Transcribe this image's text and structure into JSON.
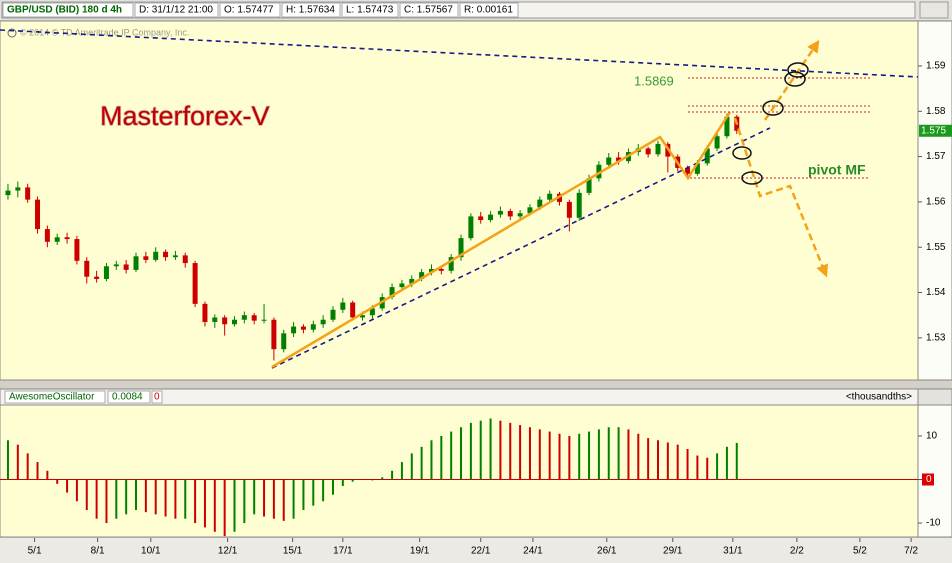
{
  "header": {
    "symbol": "GBP/USD (BID) 180 d 4h",
    "date": "D: 31/1/12 21:00",
    "open": "O: 1.57477",
    "high": "H: 1.57634",
    "low": "L: 1.57473",
    "close": "C: 1.57567",
    "range": "R: 0.00161"
  },
  "chart_data": [
    {
      "type": "candlestick",
      "watermark": "© 2014 © TD Ameritrade IP Company, Inc.",
      "annotations": [
        "Masterforex-V",
        "1.5869",
        "pivot MF"
      ],
      "price_marker": "1.575",
      "colors": {
        "up": "#008000",
        "down": "#cc0000"
      },
      "open": [
        1.5615,
        1.5625,
        1.5632,
        1.5605,
        1.554,
        1.5512,
        1.5522,
        1.5518,
        1.547,
        1.5435,
        1.543,
        1.5458,
        1.5462,
        1.545,
        1.548,
        1.5472,
        1.549,
        1.5478,
        1.5482,
        1.5465,
        1.5375,
        1.5335,
        1.5345,
        1.533,
        1.534,
        1.535,
        1.5338,
        1.534,
        1.5275,
        1.531,
        1.5325,
        1.5318,
        1.533,
        1.534,
        1.5362,
        1.5378,
        1.5345,
        1.535,
        1.5365,
        1.539,
        1.5412,
        1.542,
        1.543,
        1.5445,
        1.5452,
        1.5448,
        1.5478,
        1.552,
        1.5568,
        1.556,
        1.5572,
        1.558,
        1.5568,
        1.5575,
        1.5588,
        1.5605,
        1.5618,
        1.56,
        1.5565,
        1.562,
        1.5652,
        1.5682,
        1.5698,
        1.569,
        1.571,
        1.5718,
        1.5705,
        1.5728,
        1.57,
        1.5675,
        1.5662,
        1.5685,
        1.5718,
        1.5745,
        1.5788
      ],
      "high": [
        1.564,
        1.5645,
        1.564,
        1.5612,
        1.5548,
        1.553,
        1.5532,
        1.5525,
        1.5478,
        1.5448,
        1.5465,
        1.547,
        1.5472,
        1.5488,
        1.549,
        1.55,
        1.5495,
        1.5492,
        1.5488,
        1.547,
        1.538,
        1.5352,
        1.535,
        1.5348,
        1.5358,
        1.5355,
        1.5375,
        1.5345,
        1.5318,
        1.5335,
        1.533,
        1.5338,
        1.535,
        1.537,
        1.5388,
        1.5382,
        1.5358,
        1.5372,
        1.5398,
        1.542,
        1.5428,
        1.5438,
        1.5452,
        1.5462,
        1.546,
        1.5485,
        1.5528,
        1.5575,
        1.5578,
        1.558,
        1.559,
        1.5585,
        1.5582,
        1.5595,
        1.5612,
        1.5625,
        1.5622,
        1.5605,
        1.5628,
        1.566,
        1.569,
        1.5708,
        1.571,
        1.5718,
        1.5728,
        1.5722,
        1.5735,
        1.5732,
        1.5705,
        1.568,
        1.5692,
        1.5725,
        1.5752,
        1.5795,
        1.5792
      ],
      "low": [
        1.5605,
        1.561,
        1.5598,
        1.553,
        1.55,
        1.5505,
        1.5508,
        1.5462,
        1.542,
        1.5422,
        1.5425,
        1.545,
        1.5442,
        1.5445,
        1.5465,
        1.5468,
        1.547,
        1.5472,
        1.5455,
        1.5368,
        1.5325,
        1.5322,
        1.5305,
        1.5325,
        1.5332,
        1.533,
        1.5332,
        1.525,
        1.5268,
        1.5302,
        1.531,
        1.5312,
        1.5322,
        1.5335,
        1.5355,
        1.5338,
        1.5338,
        1.5342,
        1.536,
        1.5385,
        1.5405,
        1.5412,
        1.5425,
        1.5438,
        1.544,
        1.5442,
        1.547,
        1.5515,
        1.5552,
        1.5555,
        1.5565,
        1.556,
        1.556,
        1.557,
        1.5582,
        1.5598,
        1.5592,
        1.5535,
        1.5558,
        1.5615,
        1.5645,
        1.5675,
        1.5682,
        1.5685,
        1.5702,
        1.5698,
        1.57,
        1.5665,
        1.5668,
        1.5652,
        1.5658,
        1.568,
        1.5712,
        1.574,
        1.575
      ],
      "close": [
        1.5625,
        1.5632,
        1.5605,
        1.554,
        1.5512,
        1.5522,
        1.5518,
        1.547,
        1.5435,
        1.543,
        1.5458,
        1.5462,
        1.545,
        1.548,
        1.5472,
        1.549,
        1.5478,
        1.5482,
        1.5465,
        1.5375,
        1.5335,
        1.5345,
        1.533,
        1.534,
        1.535,
        1.5338,
        1.534,
        1.5275,
        1.531,
        1.5325,
        1.5318,
        1.533,
        1.534,
        1.5362,
        1.5378,
        1.5345,
        1.535,
        1.5365,
        1.539,
        1.5412,
        1.542,
        1.543,
        1.5445,
        1.5452,
        1.5448,
        1.5478,
        1.552,
        1.5568,
        1.556,
        1.5572,
        1.558,
        1.5568,
        1.5575,
        1.5588,
        1.5605,
        1.5618,
        1.56,
        1.5565,
        1.562,
        1.5652,
        1.5682,
        1.5698,
        1.569,
        1.571,
        1.5718,
        1.5705,
        1.5728,
        1.57,
        1.5675,
        1.5662,
        1.5685,
        1.5718,
        1.5745,
        1.5788,
        1.5757
      ],
      "ylim": [
        1.5207,
        1.5997
      ],
      "yticks": [
        1.53,
        1.54,
        1.55,
        1.56,
        1.57,
        1.58,
        1.59
      ],
      "xlim": [
        -0.81,
        92.4
      ],
      "xticks": [
        {
          "value": 2.7,
          "label": "5/1"
        },
        {
          "value": 9.1,
          "label": "8/1"
        },
        {
          "value": 14.5,
          "label": "10/1"
        },
        {
          "value": 22.3,
          "label": "12/1"
        },
        {
          "value": 28.9,
          "label": "15/1"
        },
        {
          "value": 34.0,
          "label": "17/1"
        },
        {
          "value": 41.8,
          "label": "19/1"
        },
        {
          "value": 48.0,
          "label": "22/1"
        },
        {
          "value": 53.3,
          "label": "24/1"
        },
        {
          "value": 60.8,
          "label": "26/1"
        },
        {
          "value": 67.5,
          "label": "29/1"
        },
        {
          "value": 73.6,
          "label": "31/1"
        },
        {
          "value": 80.1,
          "label": "2/2"
        },
        {
          "value": 86.5,
          "label": "5/2"
        },
        {
          "value": 91.7,
          "label": "7/2"
        }
      ]
    },
    {
      "type": "bar",
      "title": "AwesomeOscillator",
      "current_value": "0.0084",
      "flag": "0",
      "units": "<thousandths>",
      "colors": {
        "up": "#008000",
        "down": "#cc0000"
      },
      "values": [
        9,
        8,
        6,
        4,
        2,
        -1,
        -3,
        -5,
        -7,
        -9,
        -10,
        -9,
        -8,
        -7,
        -7.5,
        -8,
        -8.5,
        -9,
        -9,
        -10,
        -11,
        -12,
        -13,
        -12,
        -10,
        -8,
        -8.5,
        -9,
        -9.5,
        -9,
        -7,
        -6,
        -5,
        -3.5,
        -1.5,
        -0.5,
        0,
        -0.2,
        0.5,
        2,
        4,
        6,
        7.5,
        9,
        10,
        11,
        12,
        13,
        13.5,
        14,
        13.5,
        13,
        12.5,
        12,
        11.5,
        11,
        10.5,
        10,
        10.5,
        11,
        11.5,
        12,
        12,
        11.5,
        10.5,
        9.5,
        9,
        8.5,
        8,
        7,
        5.5,
        5,
        6,
        7.5,
        8.4
      ],
      "ylim": [
        -13.2,
        17.1
      ],
      "yticks": [
        -10,
        0,
        10
      ]
    }
  ]
}
